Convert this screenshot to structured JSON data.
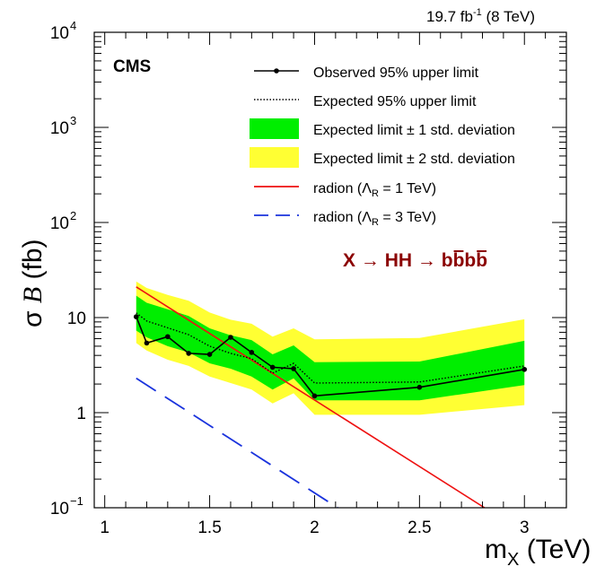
{
  "header": {
    "lumi": "19.7 fb",
    "lumi_sup": "-1",
    "energy": "(8 TeV)"
  },
  "cms_label": "CMS",
  "process": {
    "X": "X",
    "arrow1": "→",
    "HH": "HH",
    "arrow2": "→",
    "b1": "b",
    "bbar1": "b",
    "b2": "b",
    "bbar2": "b",
    "color": "#8b0000"
  },
  "chart_data": {
    "type": "line",
    "title": "",
    "xlabel_main": "m",
    "xlabel_sub": "X",
    "xlabel_unit": "(TeV)",
    "ylabel_sigma": "σ",
    "ylabel_B": "B",
    "ylabel_unit": "(fb)",
    "xscale": "linear",
    "yscale": "log",
    "xlim": [
      0.95,
      3.2
    ],
    "ylim": [
      0.1,
      10000
    ],
    "x_ticks": [
      1,
      1.5,
      2,
      2.5,
      3
    ],
    "x_tick_labels": [
      "1",
      "1.5",
      "2",
      "2.5",
      "3"
    ],
    "y_tick_labels": [
      {
        "value": 0.1,
        "base": "10",
        "sup": "−1"
      },
      {
        "value": 1,
        "base": "1",
        "sup": ""
      },
      {
        "value": 10,
        "base": "10",
        "sup": ""
      },
      {
        "value": 100,
        "base": "10",
        "sup": "2"
      },
      {
        "value": 1000,
        "base": "10",
        "sup": "3"
      },
      {
        "value": 10000,
        "base": "10",
        "sup": "4"
      }
    ],
    "mass_points": [
      1.15,
      1.2,
      1.3,
      1.4,
      1.5,
      1.6,
      1.7,
      1.8,
      1.9,
      2.0,
      2.5,
      3.0
    ],
    "observed": [
      10.2,
      5.4,
      6.3,
      4.2,
      4.1,
      6.2,
      4.3,
      3.0,
      2.9,
      1.5,
      1.85,
      2.85
    ],
    "expected": [
      11.2,
      9.2,
      7.8,
      6.6,
      5.0,
      4.2,
      3.7,
      2.6,
      3.3,
      2.05,
      2.1,
      3.1
    ],
    "band_1sigma_low": [
      7.3,
      6.2,
      5.0,
      4.3,
      3.3,
      2.9,
      2.4,
      1.75,
      2.3,
      1.35,
      1.35,
      1.95
    ],
    "band_1sigma_high": [
      17.0,
      14.3,
      12.2,
      10.4,
      7.7,
      6.5,
      5.8,
      4.1,
      5.1,
      3.4,
      3.45,
      5.7
    ],
    "band_2sigma_low": [
      5.4,
      4.5,
      3.6,
      3.1,
      2.4,
      2.05,
      1.75,
      1.25,
      1.6,
      0.95,
      0.95,
      1.2
    ],
    "band_2sigma_high": [
      24.0,
      20.5,
      17.3,
      15.0,
      11.3,
      9.5,
      8.6,
      6.3,
      7.7,
      5.9,
      6.1,
      9.6
    ],
    "radion_1TeV": {
      "x": [
        1.15,
        2.81
      ],
      "y": [
        21.0,
        0.1
      ]
    },
    "radion_3TeV": {
      "x": [
        1.15,
        2.11
      ],
      "y": [
        2.3,
        0.1
      ]
    },
    "legend_position": "top-right",
    "legend": [
      {
        "key": "observed",
        "label": "Observed 95% upper limit"
      },
      {
        "key": "expected",
        "label": "Expected 95% upper limit"
      },
      {
        "key": "band1",
        "label_pre": "Expected limit ",
        "pm": "±",
        "label_post": " 1 std. deviation"
      },
      {
        "key": "band2",
        "label_pre": "Expected limit ",
        "pm": "±",
        "label_post": " 2 std. deviation"
      },
      {
        "key": "radion1",
        "label_pre": "radion (",
        "lambda": "Λ",
        "sub": "R",
        "label_post": " = 1 TeV)"
      },
      {
        "key": "radion3",
        "label_pre": "radion (",
        "lambda": "Λ",
        "sub": "R",
        "label_post": " = 3 TeV)"
      }
    ],
    "colors": {
      "band1": "#00ee00",
      "band2": "#ffff33",
      "observed": "#000000",
      "expected": "#000000",
      "radion1": "#ee1111",
      "radion3": "#1a33dd",
      "axis": "#000000"
    }
  }
}
